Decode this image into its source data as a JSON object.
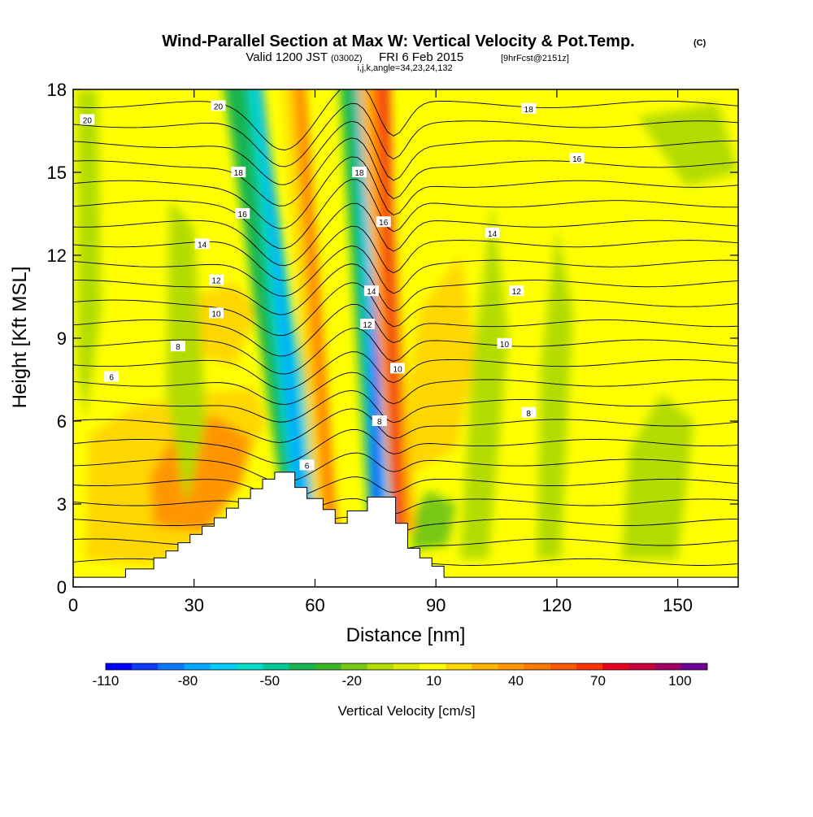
{
  "chart_data": {
    "type": "heatmap",
    "title": "Wind-Parallel Section at Max W: Vertical Velocity & Pot.Temp.",
    "title_mark": "(C)",
    "subtitle": {
      "valid": "Valid 1200 JST",
      "utc": "(0300Z)",
      "date": "FRI 6 Feb 2015",
      "fcst": "[9hrFcst@2151z]"
    },
    "indices_note": "i,j,k,angle=34,23,24,132",
    "xlabel": "Distance [nm]",
    "ylabel": "Height [Kft MSL]",
    "xlim": [
      0,
      165
    ],
    "ylim": [
      0,
      18
    ],
    "x_ticks": [
      "0",
      "30",
      "60",
      "90",
      "120",
      "150"
    ],
    "y_ticks": [
      "0",
      "3",
      "6",
      "9",
      "12",
      "15",
      "18"
    ],
    "colorbar": {
      "label": "Vertical Velocity [cm/s]",
      "tick_labels": [
        "-110",
        "-80",
        "-50",
        "-20",
        "10",
        "40",
        "70",
        "100"
      ],
      "levels": [
        -110,
        -100,
        -90,
        -80,
        -70,
        -60,
        -50,
        -40,
        -30,
        -20,
        -10,
        0,
        10,
        20,
        30,
        40,
        50,
        60,
        70,
        80,
        90,
        100,
        110
      ],
      "colors": [
        "#0000ff",
        "#0d3cff",
        "#0a78ff",
        "#00a8ff",
        "#00ccf5",
        "#00dcc8",
        "#00c896",
        "#19b450",
        "#3cb428",
        "#78c814",
        "#b4dc00",
        "#dceb00",
        "#ffff00",
        "#ffd700",
        "#ffb400",
        "#ff9600",
        "#ff7800",
        "#ff5a00",
        "#ff3200",
        "#e6001e",
        "#c8003c",
        "#a00064",
        "#6e0096"
      ]
    },
    "terrain": [
      [
        0,
        0.35
      ],
      [
        13,
        0.35
      ],
      [
        13,
        0.65
      ],
      [
        20,
        0.65
      ],
      [
        20,
        1.05
      ],
      [
        23,
        1.05
      ],
      [
        23,
        1.3
      ],
      [
        26,
        1.3
      ],
      [
        26,
        1.6
      ],
      [
        29,
        1.6
      ],
      [
        29,
        1.9
      ],
      [
        32,
        1.9
      ],
      [
        32,
        2.2
      ],
      [
        35,
        2.2
      ],
      [
        35,
        2.5
      ],
      [
        38,
        2.5
      ],
      [
        38,
        2.85
      ],
      [
        41,
        2.85
      ],
      [
        41,
        3.2
      ],
      [
        44,
        3.2
      ],
      [
        44,
        3.55
      ],
      [
        47,
        3.55
      ],
      [
        47,
        3.9
      ],
      [
        50,
        3.9
      ],
      [
        50,
        4.15
      ],
      [
        55,
        4.15
      ],
      [
        55,
        3.6
      ],
      [
        58,
        3.6
      ],
      [
        58,
        3.2
      ],
      [
        62,
        3.2
      ],
      [
        62,
        2.8
      ],
      [
        65,
        2.8
      ],
      [
        65,
        2.3
      ],
      [
        68,
        2.3
      ],
      [
        68,
        2.75
      ],
      [
        73,
        2.75
      ],
      [
        73,
        3.25
      ],
      [
        80,
        3.25
      ],
      [
        80,
        2.3
      ],
      [
        83,
        2.3
      ],
      [
        83,
        1.4
      ],
      [
        86,
        1.4
      ],
      [
        86,
        1.05
      ],
      [
        89,
        1.05
      ],
      [
        89,
        0.75
      ],
      [
        92,
        0.75
      ],
      [
        92,
        0.35
      ],
      [
        165,
        0.35
      ]
    ],
    "theta_labels": [
      {
        "text": "20",
        "x": 3.5,
        "y": 16.9
      },
      {
        "text": "20",
        "x": 36,
        "y": 17.4
      },
      {
        "text": "18",
        "x": 113,
        "y": 17.3
      },
      {
        "text": "18",
        "x": 41,
        "y": 15.0
      },
      {
        "text": "18",
        "x": 71,
        "y": 15.0
      },
      {
        "text": "16",
        "x": 125,
        "y": 15.5
      },
      {
        "text": "16",
        "x": 42,
        "y": 13.5
      },
      {
        "text": "16",
        "x": 77,
        "y": 13.2
      },
      {
        "text": "14",
        "x": 32,
        "y": 12.4
      },
      {
        "text": "14",
        "x": 104,
        "y": 12.8
      },
      {
        "text": "14",
        "x": 74,
        "y": 10.7
      },
      {
        "text": "12",
        "x": 35.5,
        "y": 11.1
      },
      {
        "text": "12",
        "x": 110,
        "y": 10.7
      },
      {
        "text": "12",
        "x": 73,
        "y": 9.5
      },
      {
        "text": "10",
        "x": 35.5,
        "y": 9.9
      },
      {
        "text": "10",
        "x": 107,
        "y": 8.8
      },
      {
        "text": "10",
        "x": 80.5,
        "y": 7.9
      },
      {
        "text": "8",
        "x": 26,
        "y": 8.7
      },
      {
        "text": "8",
        "x": 113,
        "y": 6.3
      },
      {
        "text": "8",
        "x": 76,
        "y": 6.0
      },
      {
        "text": "6",
        "x": 9.5,
        "y": 7.6
      },
      {
        "text": "6",
        "x": 58,
        "y": 4.4
      }
    ]
  }
}
